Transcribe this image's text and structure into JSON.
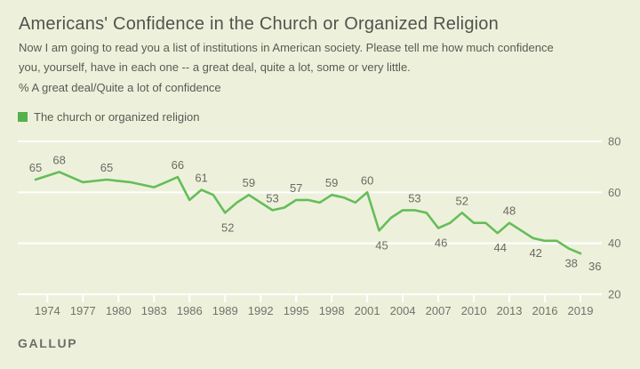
{
  "page": {
    "title": "Americans' Confidence in the Church or Organized Religion",
    "subtitle_line1": "Now I am going to read you a list of institutions in American society. Please tell me how much confidence",
    "subtitle_line2": "you, yourself, have in each one -- a great deal, quite a lot, some or very little.",
    "metric_label": "% A great deal/Quite a lot of confidence",
    "footer": "GALLUP"
  },
  "legend": {
    "label": "The church or organized religion",
    "color": "#54b14c"
  },
  "colors": {
    "background": "#edf1dc",
    "line_green": "#66bd58",
    "gridline": "#ffffff",
    "axis_text": "#73726a",
    "data_label_text": "#6b6a62"
  },
  "chart_data": {
    "type": "line",
    "title": "Americans' Confidence in the Church or Organized Religion",
    "ylabel": "% A great deal/Quite a lot of confidence",
    "xlim": [
      1973,
      2019
    ],
    "ylim": [
      20,
      80
    ],
    "yticks": [
      20,
      40,
      60,
      80
    ],
    "xticks": [
      1974,
      1977,
      1980,
      1983,
      1986,
      1989,
      1992,
      1995,
      1998,
      2001,
      2004,
      2007,
      2010,
      2013,
      2016,
      2019
    ],
    "grid": "horizontal-white",
    "yaxis_side": "right",
    "legend_position": "top-left",
    "series": [
      {
        "name": "The church or organized religion",
        "color": "#66bd58",
        "x": [
          1973,
          1975,
          1977,
          1979,
          1981,
          1983,
          1984,
          1985,
          1986,
          1987,
          1988,
          1989,
          1990,
          1991,
          1993,
          1994,
          1995,
          1996,
          1997,
          1998,
          1999,
          2000,
          2001,
          2002,
          2003,
          2004,
          2005,
          2006,
          2007,
          2008,
          2009,
          2010,
          2011,
          2012,
          2013,
          2014,
          2015,
          2016,
          2017,
          2018,
          2019
        ],
        "y": [
          65,
          68,
          64,
          65,
          64,
          62,
          64,
          66,
          57,
          61,
          59,
          52,
          56,
          59,
          53,
          54,
          57,
          57,
          56,
          59,
          58,
          56,
          60,
          45,
          50,
          53,
          53,
          52,
          46,
          48,
          52,
          48,
          48,
          44,
          48,
          45,
          42,
          41,
          41,
          38,
          36
        ]
      }
    ],
    "point_labels": [
      {
        "x": 1973,
        "y": 65,
        "pos": "above"
      },
      {
        "x": 1975,
        "y": 68,
        "pos": "above"
      },
      {
        "x": 1979,
        "y": 65,
        "pos": "above"
      },
      {
        "x": 1985,
        "y": 66,
        "pos": "above"
      },
      {
        "x": 1987,
        "y": 61,
        "pos": "above"
      },
      {
        "x": 1989,
        "y": 52,
        "pos": "below"
      },
      {
        "x": 1991,
        "y": 59,
        "pos": "above"
      },
      {
        "x": 1993,
        "y": 53,
        "pos": "above"
      },
      {
        "x": 1995,
        "y": 57,
        "pos": "above"
      },
      {
        "x": 1998,
        "y": 59,
        "pos": "above"
      },
      {
        "x": 2001,
        "y": 60,
        "pos": "above"
      },
      {
        "x": 2002,
        "y": 45,
        "pos": "below"
      },
      {
        "x": 2005,
        "y": 53,
        "pos": "above"
      },
      {
        "x": 2007,
        "y": 46,
        "pos": "below"
      },
      {
        "x": 2009,
        "y": 52,
        "pos": "above"
      },
      {
        "x": 2012,
        "y": 44,
        "pos": "below"
      },
      {
        "x": 2013,
        "y": 48,
        "pos": "above"
      },
      {
        "x": 2015,
        "y": 42,
        "pos": "below"
      },
      {
        "x": 2018,
        "y": 38,
        "pos": "below"
      },
      {
        "x": 2019,
        "y": 36,
        "pos": "below-right"
      }
    ]
  }
}
